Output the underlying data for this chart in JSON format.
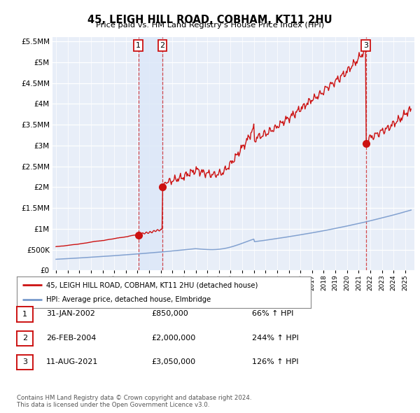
{
  "title": "45, LEIGH HILL ROAD, COBHAM, KT11 2HU",
  "subtitle": "Price paid vs. HM Land Registry's House Price Index (HPI)",
  "ytick_values": [
    0,
    500000,
    1000000,
    1500000,
    2000000,
    2500000,
    3000000,
    3500000,
    4000000,
    4500000,
    5000000,
    5500000
  ],
  "ylim": [
    0,
    5600000
  ],
  "xlim_start": 1994.7,
  "xlim_end": 2025.8,
  "hpi_color": "#7799cc",
  "price_color": "#cc1111",
  "background_chart": "#e8eef8",
  "background_fig": "#ffffff",
  "grid_color": "#ffffff",
  "transaction_boxes": [
    {
      "num": 1,
      "date": "31-JAN-2002",
      "price": 850000,
      "year": 2002.08
    },
    {
      "num": 2,
      "date": "26-FEB-2004",
      "price": 2000000,
      "year": 2004.15
    },
    {
      "num": 3,
      "date": "11-AUG-2021",
      "price": 3050000,
      "year": 2021.62
    }
  ],
  "legend_line1": "45, LEIGH HILL ROAD, COBHAM, KT11 2HU (detached house)",
  "legend_line2": "HPI: Average price, detached house, Elmbridge",
  "footnote1": "Contains HM Land Registry data © Crown copyright and database right 2024.",
  "footnote2": "This data is licensed under the Open Government Licence v3.0.",
  "table_rows": [
    {
      "num": 1,
      "date": "31-JAN-2002",
      "price": "£850,000",
      "pct": "66% ↑ HPI"
    },
    {
      "num": 2,
      "date": "26-FEB-2004",
      "price": "£2,000,000",
      "pct": "244% ↑ HPI"
    },
    {
      "num": 3,
      "date": "11-AUG-2021",
      "price": "£3,050,000",
      "pct": "126% ↑ HPI"
    }
  ]
}
